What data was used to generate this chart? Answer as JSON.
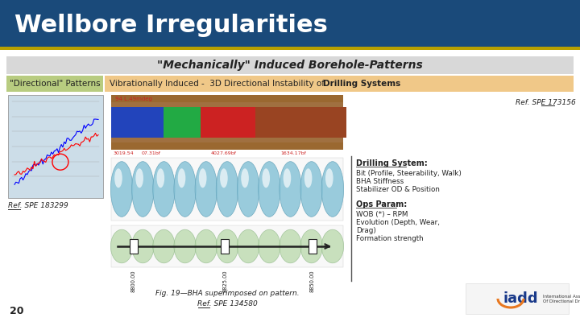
{
  "title": "Wellbore Irregularities",
  "title_bg": "#1a4a7a",
  "title_text_color": "#ffffff",
  "title_border_color": "#b8a000",
  "slide_bg": "#f0f0f0",
  "section_header": "\"Mechanically\" Induced Borehole-Patterns",
  "section_header_bg": "#d8d8d8",
  "left_label": "\"Directional\" Patterns",
  "left_label_bg": "#b8cc80",
  "right_header_normal": "Vibrationally Induced -  3D Directional Instability of ",
  "right_header_bold": "Drilling Systems",
  "right_header_bg": "#f0c888",
  "ref_spe_top": "Ref. SPE 173156",
  "ref_spe_left": "Ref. SPE 183299",
  "ref_spe_bottom": "Ref. SPE 134580",
  "fig_caption": "Fig. 19—BHA superimposed on pattern.",
  "drilling_system_title": "Drilling System:",
  "drilling_system_items": [
    "Bit (Profile, Steerability, Walk)",
    "BHA Stiffness",
    "Stabilizer OD & Position"
  ],
  "ops_param_title": "Ops Param:",
  "ops_param_items": [
    "WOB (*) – RPM",
    "Evolution (Depth, Wear,",
    "Drag)",
    "Formation strength"
  ],
  "page_num": "20",
  "content_bg": "#ffffff"
}
